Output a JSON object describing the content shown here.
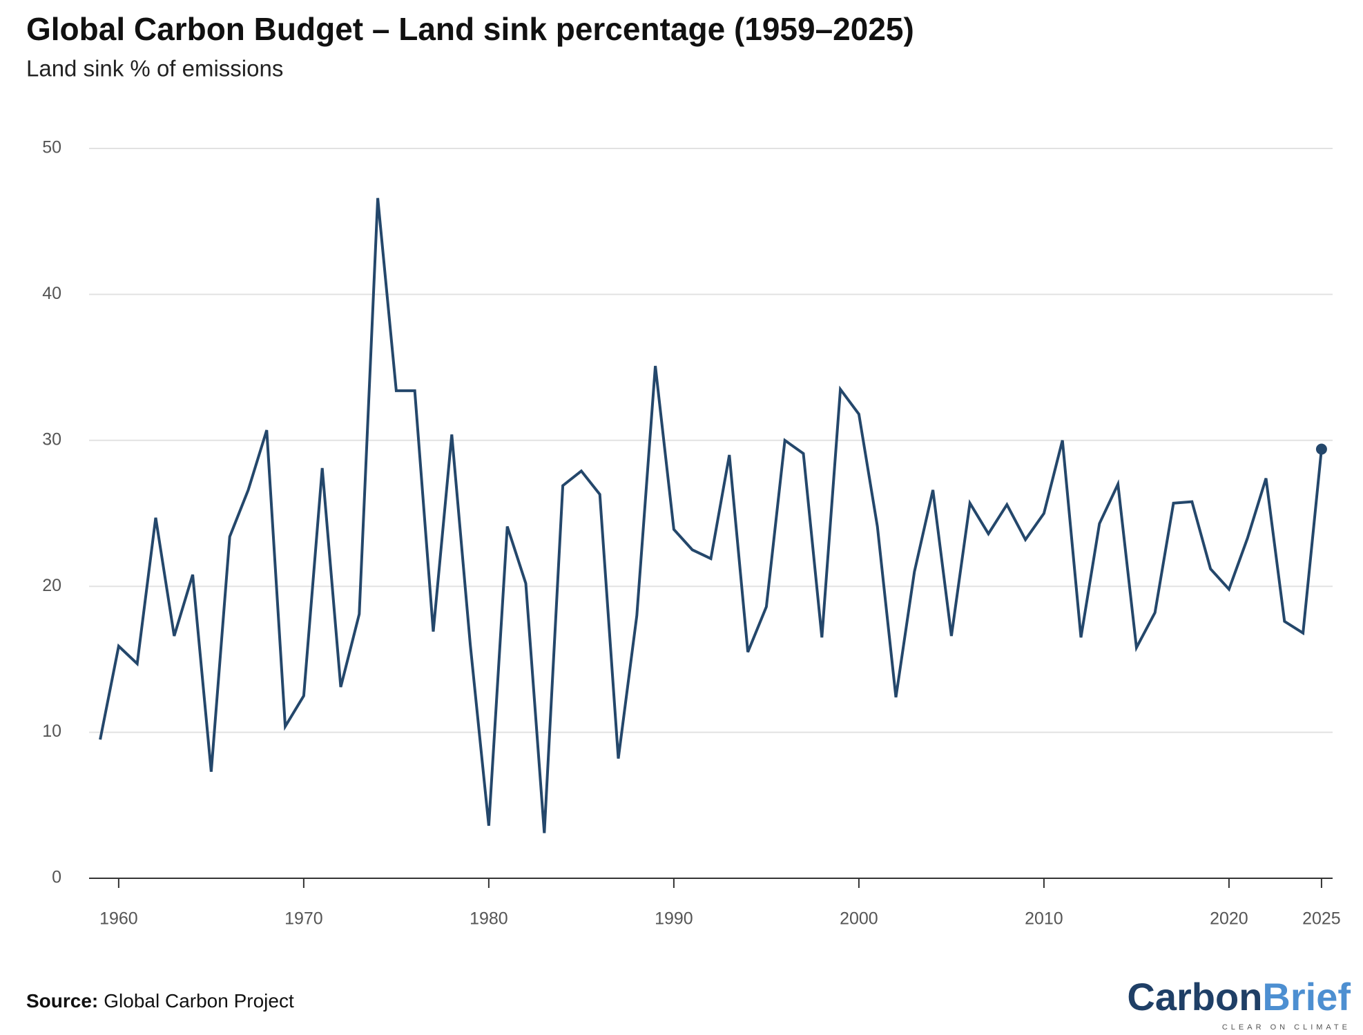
{
  "chart_data": {
    "type": "line",
    "title": "Global Carbon Budget – Land sink percentage (1959–2025)",
    "subtitle": "Land sink % of emissions",
    "x": [
      1959,
      1960,
      1961,
      1962,
      1963,
      1964,
      1965,
      1966,
      1967,
      1968,
      1969,
      1970,
      1971,
      1972,
      1973,
      1974,
      1975,
      1976,
      1977,
      1978,
      1979,
      1980,
      1981,
      1982,
      1983,
      1984,
      1985,
      1986,
      1987,
      1988,
      1989,
      1990,
      1991,
      1992,
      1993,
      1994,
      1995,
      1996,
      1997,
      1998,
      1999,
      2000,
      2001,
      2002,
      2003,
      2004,
      2005,
      2006,
      2007,
      2008,
      2009,
      2010,
      2011,
      2012,
      2013,
      2014,
      2015,
      2016,
      2017,
      2018,
      2019,
      2020,
      2021,
      2022,
      2023,
      2024,
      2025
    ],
    "series": [
      {
        "name": "Land sink %",
        "color": "#24476b",
        "values": [
          9.5,
          15.9,
          14.7,
          24.7,
          16.6,
          20.8,
          7.3,
          23.4,
          26.6,
          30.7,
          10.4,
          12.5,
          28.1,
          13.1,
          18.1,
          46.6,
          33.4,
          33.4,
          16.9,
          30.4,
          16.0,
          3.6,
          24.1,
          20.2,
          3.1,
          26.9,
          27.9,
          26.3,
          8.2,
          18.0,
          35.1,
          23.9,
          22.5,
          21.9,
          29.0,
          15.5,
          18.6,
          30.0,
          29.1,
          16.5,
          33.5,
          31.8,
          24.1,
          12.4,
          21.0,
          26.6,
          16.6,
          25.7,
          23.6,
          25.6,
          23.2,
          25.0,
          30.0,
          16.5,
          24.3,
          27.0,
          15.8,
          18.2,
          25.7,
          25.8,
          21.2,
          19.8,
          23.3,
          27.4,
          17.6,
          16.8,
          29.4
        ]
      }
    ],
    "xlim": [
      1958.4,
      2025.6
    ],
    "xticks": [
      1960,
      1970,
      1980,
      1990,
      2000,
      2010,
      2020,
      2025
    ],
    "ylim": [
      0,
      50
    ],
    "yticks": [
      0,
      10,
      20,
      30,
      40,
      50
    ],
    "grid": true,
    "marker_last": true
  },
  "footer": {
    "source_label": "Source:",
    "source": "Global Carbon Project",
    "logo_a": "Carbon",
    "logo_b": "Brief",
    "logo_tagline": "CLEAR ON CLIMATE"
  }
}
